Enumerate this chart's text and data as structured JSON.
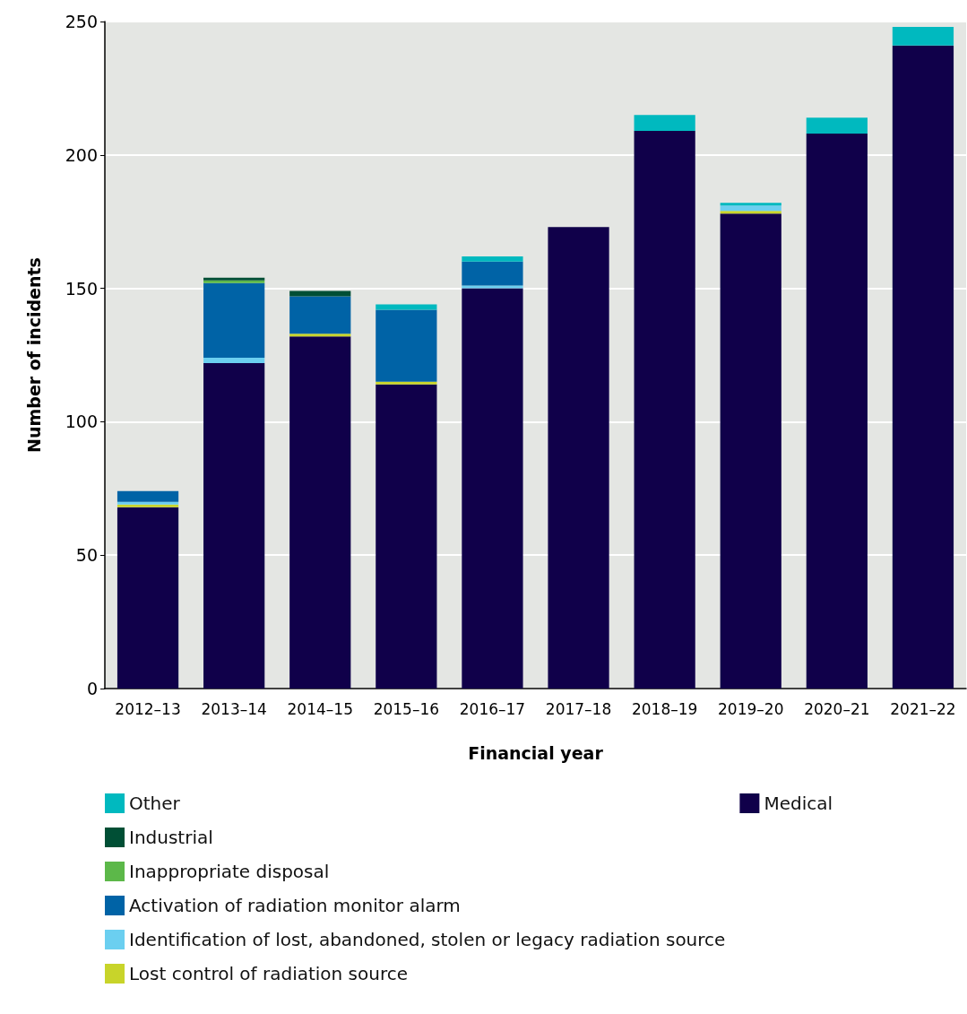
{
  "chart_data": {
    "type": "bar",
    "stacked": true,
    "xlabel": "Financial year",
    "ylabel": "Number of incidents",
    "categories": [
      "2012–13",
      "2013–14",
      "2014–15",
      "2015–16",
      "2016–17",
      "2017–18",
      "2018–19",
      "2019–20",
      "2020–21",
      "2021–22"
    ],
    "series": [
      {
        "name": "Medical",
        "color": "#10004a",
        "values": [
          68,
          122,
          132,
          114,
          150,
          173,
          209,
          178,
          208,
          241
        ]
      },
      {
        "name": "Lost control of radiation source",
        "color": "#c8d42a",
        "values": [
          1,
          0,
          1,
          1,
          0,
          0,
          0,
          1,
          0,
          0
        ]
      },
      {
        "name": "Identification of lost, abandoned, stolen or legacy radiation source",
        "color": "#6bcff0",
        "values": [
          1,
          2,
          0,
          0,
          1,
          0,
          0,
          2,
          0,
          0
        ]
      },
      {
        "name": "Activation of radiation monitor alarm",
        "color": "#0063a6",
        "values": [
          4,
          28,
          14,
          27,
          9,
          0,
          0,
          0,
          0,
          0
        ]
      },
      {
        "name": "Inappropriate disposal",
        "color": "#5cb849",
        "values": [
          0,
          1,
          0,
          0,
          0,
          0,
          0,
          0,
          0,
          0
        ]
      },
      {
        "name": "Industrial",
        "color": "#004f35",
        "values": [
          0,
          1,
          2,
          0,
          0,
          0,
          0,
          0,
          0,
          0
        ]
      },
      {
        "name": "Other",
        "color": "#00b9bf",
        "values": [
          0,
          0,
          0,
          2,
          2,
          0,
          6,
          1,
          6,
          7
        ]
      }
    ],
    "ylim": [
      0,
      250
    ],
    "yticks": [
      0,
      50,
      100,
      150,
      200,
      250
    ],
    "grid": "y",
    "legend": "bottom"
  }
}
